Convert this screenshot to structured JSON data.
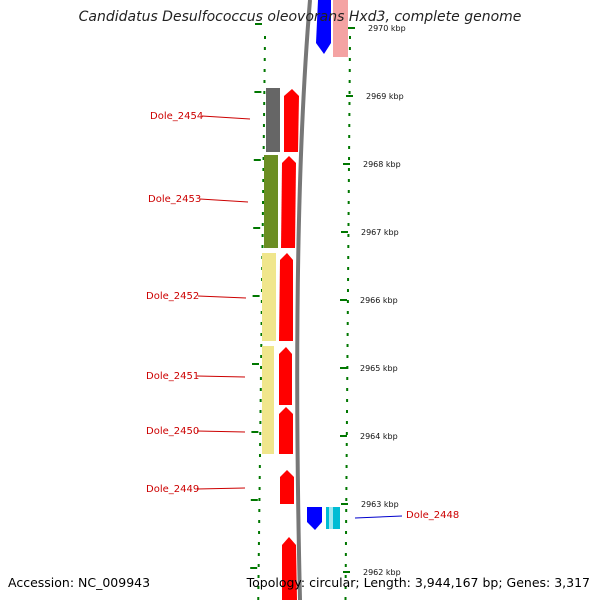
{
  "title": "Candidatus Desulfococcus oleovorans Hxd3, complete genome",
  "accession": "Accession: NC_009943",
  "summary": "Topology: circular; Length: 3,944,167 bp; Genes: 3,317",
  "colors": {
    "forward_gene": "#ff0000",
    "reverse_gene": "#0000ff",
    "highlight_label": "#0000cc",
    "label": "#cc0000",
    "ruler": "#007700"
  },
  "ticks": [
    {
      "label": "2970 kbp"
    },
    {
      "label": "2969 kbp"
    },
    {
      "label": "2968 kbp"
    },
    {
      "label": "2967 kbp"
    },
    {
      "label": "2966 kbp"
    },
    {
      "label": "2965 kbp"
    },
    {
      "label": "2964 kbp"
    },
    {
      "label": "2963 kbp"
    },
    {
      "label": "2962 kbp"
    }
  ],
  "genes": [
    {
      "name": "Dole_2454",
      "color": "#666666"
    },
    {
      "name": "Dole_2453",
      "color": "#6b8e23"
    },
    {
      "name": "Dole_2452",
      "color": "#f0e68c"
    },
    {
      "name": "Dole_2451",
      "color": "#f0e68c"
    },
    {
      "name": "Dole_2450",
      "color": "#f0e68c"
    },
    {
      "name": "Dole_2449",
      "color": ""
    },
    {
      "name": "Dole_2448",
      "color": "#00bcd4"
    }
  ]
}
